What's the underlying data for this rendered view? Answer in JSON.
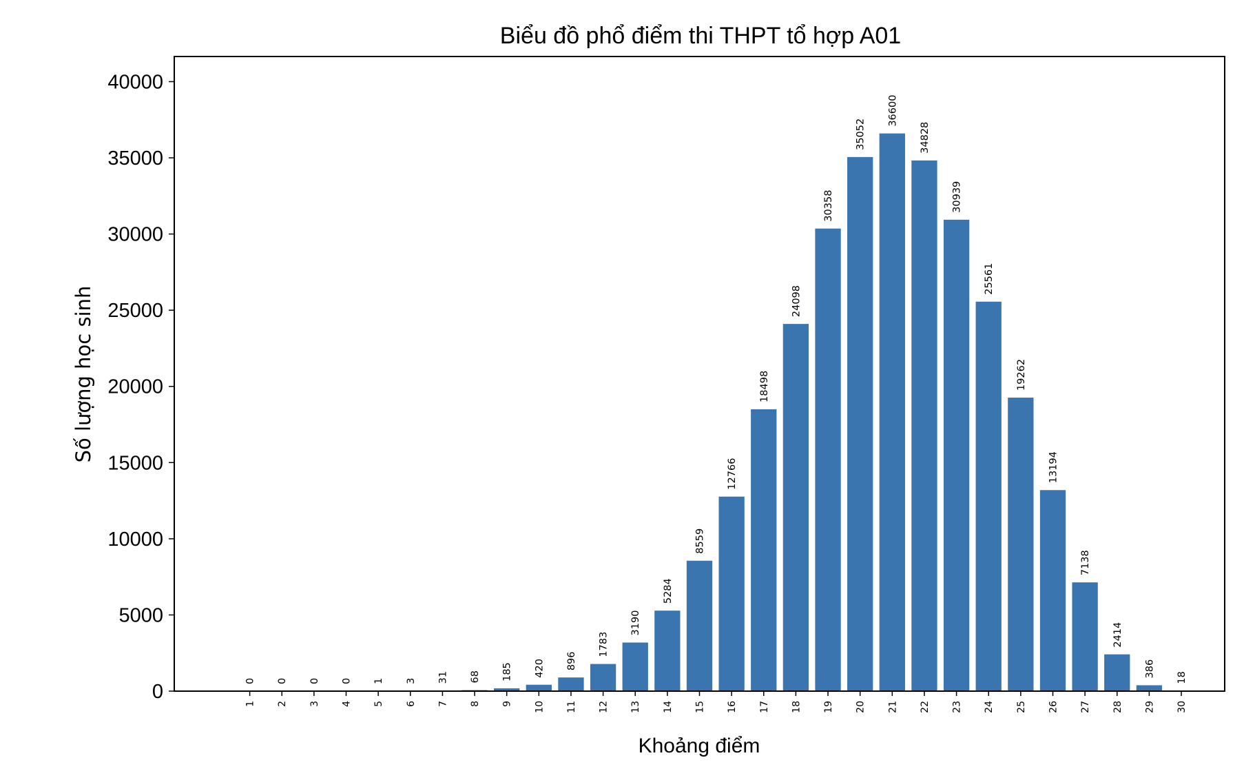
{
  "chart_data": {
    "type": "bar",
    "title": "Biểu đồ phổ điểm thi THPT tổ hợp A01",
    "xlabel": "Khoảng điểm",
    "ylabel": "Số lượng học sinh",
    "categories": [
      "1",
      "2",
      "3",
      "4",
      "5",
      "6",
      "7",
      "8",
      "9",
      "10",
      "11",
      "12",
      "13",
      "14",
      "15",
      "16",
      "17",
      "18",
      "19",
      "20",
      "21",
      "22",
      "23",
      "24",
      "25",
      "26",
      "27",
      "28",
      "29",
      "30"
    ],
    "values": [
      0,
      0,
      0,
      0,
      1,
      3,
      31,
      68,
      185,
      420,
      896,
      1783,
      3190,
      5284,
      8559,
      12766,
      18498,
      24098,
      30358,
      35052,
      36600,
      34828,
      30939,
      25561,
      19262,
      13194,
      7138,
      2414,
      386,
      18
    ],
    "data_labels": [
      "0",
      "0",
      "0",
      "0",
      "1",
      "3",
      "31",
      "68",
      "185",
      "420",
      "896",
      "1783",
      "3190",
      "5284",
      "8559",
      "12766",
      "18498",
      "24098",
      "30358",
      "35052",
      "36600",
      "34828",
      "30939",
      "25561",
      "19262",
      "13194",
      "7138",
      "2414",
      "386",
      "18"
    ],
    "yticks": [
      0,
      5000,
      10000,
      15000,
      20000,
      25000,
      30000,
      35000,
      40000
    ],
    "ytick_labels": [
      "0",
      "5000",
      "10000",
      "15000",
      "20000",
      "25000",
      "30000",
      "35000",
      "40000"
    ],
    "ylim": [
      0,
      41650
    ],
    "xlim": [
      -1.35,
      31.35
    ],
    "bar_color": "#3a75af",
    "grid": false,
    "legend": "none"
  }
}
